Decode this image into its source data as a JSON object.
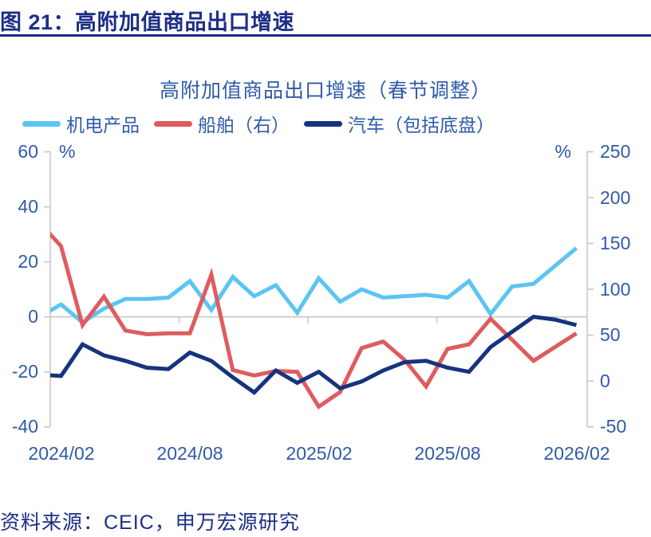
{
  "header": {
    "title": "图 21：高附加值商品出口增速"
  },
  "chart": {
    "title": "高附加值商品出口增速（春节调整）",
    "legend": [
      {
        "label": "机电产品",
        "color": "#5bc5f2"
      },
      {
        "label": "船舶（右）",
        "color": "#de5c5f"
      },
      {
        "label": "汽车（包括底盘）",
        "color": "#16337e"
      }
    ],
    "left_axis": {
      "unit": "%",
      "min": -40,
      "max": 60,
      "ticks": [
        60,
        40,
        20,
        0,
        -20,
        -40
      ]
    },
    "right_axis": {
      "unit": "%",
      "min": -50,
      "max": 250,
      "ticks": [
        250,
        200,
        150,
        100,
        50,
        0,
        -50
      ]
    },
    "x_tick_labels": [
      "2024/02",
      "2024/08",
      "2025/02",
      "2025/08",
      "2026/02"
    ],
    "axis_color": "#c9c9c9"
  },
  "chart_data": {
    "type": "line",
    "x": [
      "2024/01",
      "2024/02",
      "2024/03",
      "2024/04",
      "2024/05",
      "2024/06",
      "2024/07",
      "2024/08",
      "2024/09",
      "2024/10",
      "2024/11",
      "2024/12",
      "2025/01",
      "2025/02",
      "2025/03",
      "2025/04",
      "2025/05",
      "2025/06",
      "2025/07",
      "2025/08",
      "2025/09",
      "2025/10",
      "2025/11",
      "2025/12",
      "2026/01",
      "2026/02"
    ],
    "series": [
      {
        "name": "机电产品",
        "axis": "left",
        "color": "#5bc5f2",
        "values": [
          0,
          4.5,
          -2,
          3,
          6.5,
          6.5,
          7,
          13,
          2.5,
          14.5,
          7.5,
          11.5,
          1.5,
          14,
          5.5,
          10,
          7,
          7.5,
          8,
          7,
          13,
          1,
          11,
          12,
          18.5,
          25
        ]
      },
      {
        "name": "船舶（右）",
        "axis": "right",
        "color": "#de5c5f",
        "values": [
          173,
          147,
          61,
          92,
          55,
          51,
          52,
          52,
          116,
          12,
          6,
          11,
          10,
          -28,
          -12,
          36,
          43,
          23,
          -6,
          35,
          40,
          68,
          45,
          22,
          37,
          52
        ]
      },
      {
        "name": "汽车（包括底盘）",
        "axis": "left",
        "color": "#16337e",
        "values": [
          -21,
          -21.5,
          -10,
          -14,
          -16,
          -18.5,
          -19,
          -13,
          -16,
          -22,
          -27.5,
          -19.5,
          -24,
          -20,
          -26,
          -23.5,
          -19.5,
          -16.5,
          -16,
          -18.5,
          -20,
          -11,
          -5.5,
          0,
          -1,
          -3
        ]
      }
    ],
    "title": "高附加值商品出口增速（春节调整）",
    "xlabel": "",
    "ylabel_left": "%",
    "ylabel_right": "%",
    "left_ylim": [
      -40,
      60
    ],
    "right_ylim": [
      -50,
      250
    ],
    "grid": "zero-line-only",
    "legend_position": "top",
    "note": "first point 2024/01 lies left of the plot edge; its segment is clipped at the left axis"
  },
  "footer": {
    "source": "资料来源：CEIC，申万宏源研究"
  }
}
